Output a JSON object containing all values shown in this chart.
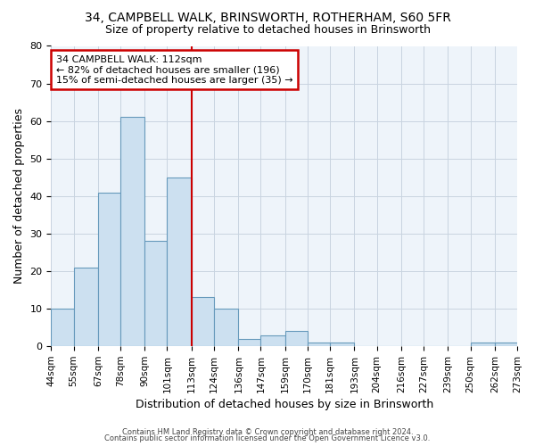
{
  "title1": "34, CAMPBELL WALK, BRINSWORTH, ROTHERHAM, S60 5FR",
  "title2": "Size of property relative to detached houses in Brinsworth",
  "xlabel": "Distribution of detached houses by size in Brinsworth",
  "ylabel": "Number of detached properties",
  "bin_edges": [
    44,
    55,
    67,
    78,
    90,
    101,
    113,
    124,
    136,
    147,
    159,
    170,
    181,
    193,
    204,
    216,
    227,
    239,
    250,
    262,
    273
  ],
  "bin_labels": [
    "44sqm",
    "55sqm",
    "67sqm",
    "78sqm",
    "90sqm",
    "101sqm",
    "113sqm",
    "124sqm",
    "136sqm",
    "147sqm",
    "159sqm",
    "170sqm",
    "181sqm",
    "193sqm",
    "204sqm",
    "216sqm",
    "227sqm",
    "239sqm",
    "250sqm",
    "262sqm",
    "273sqm"
  ],
  "counts": [
    10,
    21,
    41,
    61,
    28,
    45,
    13,
    10,
    2,
    3,
    4,
    1,
    1,
    0,
    0,
    0,
    0,
    0,
    1,
    1
  ],
  "bar_color": "#cce0f0",
  "bar_edge_color": "#6699bb",
  "vline_x": 113,
  "vline_color": "#cc0000",
  "ylim_max": 80,
  "yticks": [
    0,
    10,
    20,
    30,
    40,
    50,
    60,
    70,
    80
  ],
  "annotation_title": "34 CAMPBELL WALK: 112sqm",
  "annotation_line1": "← 82% of detached houses are smaller (196)",
  "annotation_line2": "15% of semi-detached houses are larger (35) →",
  "annotation_box_color": "#ffffff",
  "annotation_border_color": "#cc0000",
  "footer1": "Contains HM Land Registry data © Crown copyright and database right 2024.",
  "footer2": "Contains public sector information licensed under the Open Government Licence v3.0.",
  "background_color": "#eef4fa",
  "grid_color": "#c8d4e0"
}
